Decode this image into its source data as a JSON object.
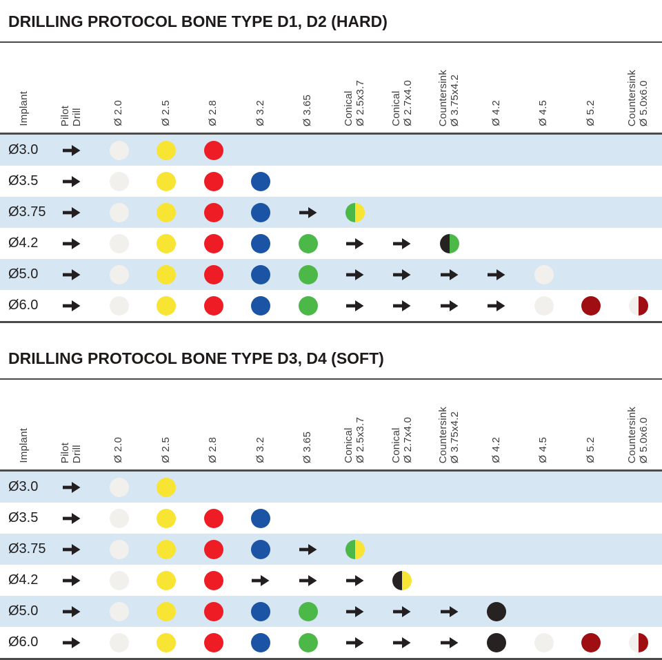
{
  "colors": {
    "white_dot": "#f2f0ed",
    "yellow": "#f7e433",
    "red": "#ee1c25",
    "blue": "#1b53a5",
    "green": "#4cb848",
    "black": "#262222",
    "dark_red": "#9e0e13",
    "row_alt_bg": "#d6e6f3",
    "arrow": "#231f20",
    "rule": "#4a4a4a"
  },
  "tables": [
    {
      "title": "DRILLING PROTOCOL BONE TYPE D1, D2 (HARD)",
      "columns": [
        "Implant",
        "Pilot\nDrill",
        "Ø 2.0",
        "Ø 2.5",
        "Ø 2.8",
        "Ø 3.2",
        "Ø 3.65",
        "Conical\nØ 2.5x3.7",
        "Conical\nØ 2.7x4.0",
        "Countersink\nØ 3.75x4.2",
        "Ø 4.2",
        "Ø 4.5",
        "Ø 5.2",
        "Countersink\nØ 5.0x6.0"
      ],
      "rows": [
        {
          "implant": "Ø3.0",
          "cells": [
            "arrow",
            "dot:white",
            "dot:yellow",
            "dot:red",
            "",
            "",
            "",
            "",
            "",
            "",
            "",
            "",
            ""
          ]
        },
        {
          "implant": "Ø3.5",
          "cells": [
            "arrow",
            "dot:white",
            "dot:yellow",
            "dot:red",
            "dot:blue",
            "",
            "",
            "",
            "",
            "",
            "",
            "",
            ""
          ]
        },
        {
          "implant": "Ø3.75",
          "cells": [
            "arrow",
            "dot:white",
            "dot:yellow",
            "dot:red",
            "dot:blue",
            "arrow",
            "half:green|yellow",
            "",
            "",
            "",
            "",
            "",
            ""
          ]
        },
        {
          "implant": "Ø4.2",
          "cells": [
            "arrow",
            "dot:white",
            "dot:yellow",
            "dot:red",
            "dot:blue",
            "dot:green",
            "arrow",
            "arrow",
            "half:black|green",
            "",
            "",
            "",
            ""
          ]
        },
        {
          "implant": "Ø5.0",
          "cells": [
            "arrow",
            "dot:white",
            "dot:yellow",
            "dot:red",
            "dot:blue",
            "dot:green",
            "arrow",
            "arrow",
            "arrow",
            "arrow",
            "dot:white",
            "",
            ""
          ]
        },
        {
          "implant": "Ø6.0",
          "cells": [
            "arrow",
            "dot:white",
            "dot:yellow",
            "dot:red",
            "dot:blue",
            "dot:green",
            "arrow",
            "arrow",
            "arrow",
            "arrow",
            "dot:white",
            "dot:darkred",
            "half:white|darkred"
          ]
        }
      ]
    },
    {
      "title": "DRILLING PROTOCOL BONE TYPE D3, D4 (SOFT)",
      "columns": [
        "Implant",
        "Pilot\nDrill",
        "Ø 2.0",
        "Ø 2.5",
        "Ø 2.8",
        "Ø 3.2",
        "Ø 3.65",
        "Conical\nØ 2.5x3.7",
        "Conical\nØ 2.7x4.0",
        "Countersink\nØ 3.75x4.2",
        "Ø 4.2",
        "Ø 4.5",
        "Ø 5.2",
        "Countersink\nØ 5.0x6.0"
      ],
      "rows": [
        {
          "implant": "Ø3.0",
          "cells": [
            "arrow",
            "dot:white",
            "dot:yellow",
            "",
            "",
            "",
            "",
            "",
            "",
            "",
            "",
            "",
            ""
          ]
        },
        {
          "implant": "Ø3.5",
          "cells": [
            "arrow",
            "dot:white",
            "dot:yellow",
            "dot:red",
            "dot:blue",
            "",
            "",
            "",
            "",
            "",
            "",
            "",
            ""
          ]
        },
        {
          "implant": "Ø3.75",
          "cells": [
            "arrow",
            "dot:white",
            "dot:yellow",
            "dot:red",
            "dot:blue",
            "arrow",
            "half:green|yellow",
            "",
            "",
            "",
            "",
            "",
            ""
          ]
        },
        {
          "implant": "Ø4.2",
          "cells": [
            "arrow",
            "dot:white",
            "dot:yellow",
            "dot:red",
            "arrow",
            "arrow",
            "arrow",
            "half:black|yellow",
            "",
            "",
            "",
            "",
            ""
          ]
        },
        {
          "implant": "Ø5.0",
          "cells": [
            "arrow",
            "dot:white",
            "dot:yellow",
            "dot:red",
            "dot:blue",
            "dot:green",
            "arrow",
            "arrow",
            "arrow",
            "dot:black",
            "",
            "",
            ""
          ]
        },
        {
          "implant": "Ø6.0",
          "cells": [
            "arrow",
            "dot:white",
            "dot:yellow",
            "dot:red",
            "dot:blue",
            "dot:green",
            "arrow",
            "arrow",
            "arrow",
            "dot:black",
            "dot:white",
            "dot:darkred",
            "half:white|darkred"
          ]
        }
      ]
    }
  ]
}
